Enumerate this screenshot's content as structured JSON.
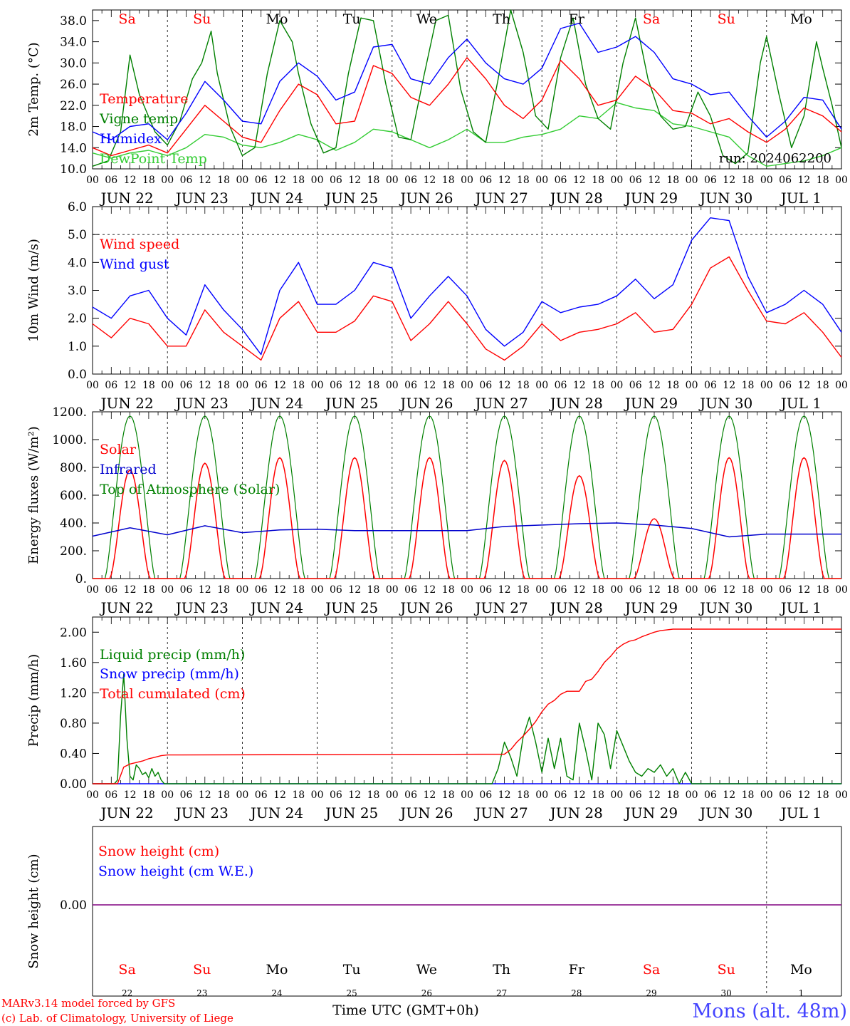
{
  "location": "Mons (alt. 48m)",
  "credit": {
    "line1": "MARv3.14 model forced by GFS",
    "line2": "(c) Lab. of Climatology, University of Liege"
  },
  "run_label": "run: 2024062200",
  "x_axis_title": "Time UTC (GMT+0h)",
  "hour_labels": [
    "00",
    "06",
    "12",
    "18"
  ],
  "days": [
    {
      "dow": "Sa",
      "date": "JUN 22",
      "num": "22",
      "weekend": true
    },
    {
      "dow": "Su",
      "date": "JUN 23",
      "num": "23",
      "weekend": true
    },
    {
      "dow": "Mo",
      "date": "JUN 24",
      "num": "24",
      "weekend": false
    },
    {
      "dow": "Tu",
      "date": "JUN 25",
      "num": "25",
      "weekend": false
    },
    {
      "dow": "We",
      "date": "JUN 26",
      "num": "26",
      "weekend": false
    },
    {
      "dow": "Th",
      "date": "JUN 27",
      "num": "27",
      "weekend": false
    },
    {
      "dow": "Fr",
      "date": "JUN 28",
      "num": "28",
      "weekend": false
    },
    {
      "dow": "Sa",
      "date": "JUN 29",
      "num": "29",
      "weekend": true
    },
    {
      "dow": "Su",
      "date": "JUN 30",
      "num": "30",
      "weekend": true
    },
    {
      "dow": "Mo",
      "date": "JUL  1",
      "num": "1",
      "weekend": false
    }
  ],
  "colors": {
    "red": "#ff0000",
    "green": "#008000",
    "blue": "#0000ff",
    "lightgreen": "#33cc33",
    "navy": "#0000cd",
    "purple": "#800080",
    "weekend_text": "#ff0000",
    "credit_text": "#ff0000",
    "location_text": "#4444ff"
  },
  "chart_data": [
    {
      "type": "line",
      "ylabel": "2m Temp. (°C)",
      "ylim": [
        10,
        40
      ],
      "yticks": [
        10.0,
        14.0,
        18.0,
        22.0,
        26.0,
        30.0,
        34.0,
        38.0
      ],
      "ytick_labels": [
        "10.0",
        "14.0",
        "18.0",
        "22.0",
        "26.0",
        "30.0",
        "34.0",
        "38.0"
      ],
      "xlabel": "",
      "legend": "left",
      "series": [
        {
          "name": "Temperature",
          "color": "#ff0000",
          "x": [
            0,
            6,
            12,
            18,
            24,
            30,
            36,
            42,
            48,
            54,
            60,
            66,
            72,
            78,
            84,
            90,
            96,
            102,
            108,
            114,
            120,
            126,
            132,
            138,
            144,
            150,
            156,
            162,
            168,
            174,
            180,
            186,
            192,
            198,
            204,
            210,
            216,
            222,
            228,
            234,
            240
          ],
          "values": [
            14.0,
            12.5,
            13.5,
            14.5,
            13.0,
            17.5,
            22.0,
            19.0,
            16.0,
            15.0,
            21.0,
            26.0,
            24.0,
            18.5,
            19.0,
            29.5,
            28.0,
            23.5,
            22.0,
            26.0,
            31.0,
            27.0,
            22.0,
            19.5,
            23.0,
            30.5,
            27.0,
            22.0,
            23.0,
            27.5,
            25.0,
            21.0,
            20.5,
            18.5,
            19.5,
            17.0,
            15.0,
            17.5,
            21.5,
            20.0,
            17.0
          ]
        },
        {
          "name": "Vigne temp",
          "color": "#008000",
          "x": [
            0,
            5,
            9,
            12,
            15,
            20,
            24,
            28,
            32,
            35,
            38,
            40,
            44,
            48,
            52,
            56,
            60,
            64,
            66,
            70,
            74,
            78,
            82,
            86,
            90,
            94,
            98,
            102,
            106,
            110,
            114,
            118,
            122,
            126,
            130,
            134,
            138,
            142,
            146,
            150,
            154,
            158,
            162,
            166,
            170,
            174,
            178,
            182,
            186,
            190,
            194,
            198,
            202,
            206,
            210,
            214,
            216,
            220,
            224,
            228,
            232,
            234,
            237,
            240
          ],
          "values": [
            10.5,
            11.5,
            17.0,
            31.5,
            24.0,
            17.0,
            14.5,
            19.0,
            27.0,
            30.0,
            36.0,
            28.0,
            18.0,
            12.5,
            14.0,
            28.0,
            38.0,
            34.0,
            28.0,
            18.5,
            13.0,
            14.0,
            28.0,
            38.5,
            38.0,
            26.0,
            16.0,
            15.5,
            27.0,
            38.0,
            39.0,
            25.0,
            17.0,
            15.0,
            27.0,
            40.0,
            32.0,
            20.0,
            17.5,
            31.0,
            38.5,
            26.0,
            19.5,
            17.5,
            30.0,
            38.5,
            27.0,
            20.0,
            17.5,
            18.0,
            24.5,
            20.0,
            12.5,
            11.0,
            13.0,
            30.0,
            35.0,
            24.0,
            14.0,
            20.0,
            34.0,
            29.0,
            22.0,
            14.0
          ]
        },
        {
          "name": "Humidex",
          "color": "#0000ff",
          "x": [
            0,
            6,
            12,
            18,
            24,
            30,
            36,
            42,
            48,
            54,
            60,
            66,
            72,
            78,
            84,
            90,
            96,
            102,
            108,
            114,
            120,
            126,
            132,
            138,
            144,
            150,
            156,
            162,
            168,
            174,
            180,
            186,
            192,
            198,
            204,
            210,
            216,
            222,
            228,
            234,
            240
          ],
          "values": [
            17.0,
            15.5,
            18.0,
            18.5,
            15.5,
            20.5,
            26.5,
            23.0,
            19.0,
            18.5,
            26.5,
            30.0,
            27.5,
            23.0,
            24.5,
            33.0,
            33.5,
            27.0,
            26.0,
            31.0,
            34.5,
            30.0,
            27.0,
            26.0,
            29.0,
            36.5,
            37.5,
            32.0,
            33.0,
            35.0,
            32.0,
            27.0,
            26.0,
            24.0,
            24.5,
            20.0,
            16.0,
            19.0,
            23.5,
            23.0,
            17.5
          ]
        },
        {
          "name": "DewPoint Temp",
          "color": "#33cc33",
          "x": [
            0,
            6,
            12,
            18,
            24,
            30,
            36,
            42,
            48,
            54,
            60,
            66,
            72,
            78,
            84,
            90,
            96,
            102,
            108,
            114,
            120,
            126,
            132,
            138,
            144,
            150,
            156,
            162,
            168,
            174,
            180,
            186,
            192,
            198,
            204,
            210,
            216,
            222,
            228,
            234,
            240
          ],
          "values": [
            13.0,
            12.0,
            13.0,
            13.5,
            12.5,
            14.0,
            16.5,
            16.0,
            14.5,
            14.0,
            15.0,
            16.5,
            15.5,
            13.5,
            15.0,
            17.5,
            17.0,
            15.5,
            14.0,
            15.5,
            17.5,
            15.0,
            15.0,
            16.0,
            16.5,
            17.5,
            20.0,
            19.5,
            22.5,
            21.5,
            21.0,
            18.5,
            18.0,
            17.0,
            16.0,
            12.5,
            10.5,
            11.0,
            11.5,
            12.5,
            14.0
          ]
        }
      ]
    },
    {
      "type": "line",
      "ylabel": "10m Wind (m/s)",
      "ylim": [
        0,
        6
      ],
      "yticks": [
        0,
        1,
        2,
        3,
        4,
        5,
        6
      ],
      "ytick_labels": [
        "0.0",
        "1.0",
        "2.0",
        "3.0",
        "4.0",
        "5.0",
        "6.0"
      ],
      "reference_line": 5.0,
      "legend": "left",
      "series": [
        {
          "name": "Wind speed",
          "color": "#ff0000",
          "x": [
            0,
            6,
            12,
            18,
            24,
            30,
            36,
            42,
            48,
            54,
            60,
            66,
            72,
            78,
            84,
            90,
            96,
            102,
            108,
            114,
            120,
            126,
            132,
            138,
            144,
            150,
            156,
            162,
            168,
            174,
            180,
            186,
            192,
            198,
            204,
            210,
            216,
            222,
            228,
            234,
            240
          ],
          "values": [
            1.8,
            1.3,
            2.0,
            1.8,
            1.0,
            1.0,
            2.3,
            1.5,
            1.0,
            0.5,
            2.0,
            2.6,
            1.5,
            1.5,
            1.9,
            2.8,
            2.6,
            1.2,
            1.8,
            2.6,
            1.8,
            0.9,
            0.5,
            1.0,
            1.8,
            1.2,
            1.5,
            1.6,
            1.8,
            2.2,
            1.5,
            1.6,
            2.5,
            3.8,
            4.2,
            3.0,
            1.9,
            1.8,
            2.2,
            1.5,
            0.6
          ]
        },
        {
          "name": "Wind gust",
          "color": "#0000ff",
          "x": [
            0,
            6,
            12,
            18,
            24,
            30,
            36,
            42,
            48,
            54,
            60,
            66,
            72,
            78,
            84,
            90,
            96,
            102,
            108,
            114,
            120,
            126,
            132,
            138,
            144,
            150,
            156,
            162,
            168,
            174,
            180,
            186,
            192,
            198,
            204,
            210,
            216,
            222,
            228,
            234,
            240
          ],
          "values": [
            2.4,
            2.0,
            2.8,
            3.0,
            2.0,
            1.4,
            3.2,
            2.3,
            1.6,
            0.7,
            3.0,
            4.0,
            2.5,
            2.5,
            3.0,
            4.0,
            3.8,
            2.0,
            2.8,
            3.5,
            2.8,
            1.6,
            1.0,
            1.5,
            2.6,
            2.2,
            2.4,
            2.5,
            2.8,
            3.4,
            2.7,
            3.2,
            4.8,
            5.6,
            5.5,
            3.5,
            2.2,
            2.5,
            3.0,
            2.5,
            1.5
          ]
        }
      ]
    },
    {
      "type": "line",
      "ylabel": "Energy fluxes (W/m²)",
      "ylim": [
        0,
        1200
      ],
      "yticks": [
        0,
        200,
        400,
        600,
        800,
        1000,
        1200
      ],
      "ytick_labels": [
        "0.",
        "200.",
        "400.",
        "600.",
        "800.",
        "1000.",
        "1200."
      ],
      "legend": "left",
      "series": [
        {
          "name": "Solar",
          "color": "#ff0000",
          "peaks": [
            780,
            830,
            870,
            870,
            870,
            850,
            740,
            430,
            870,
            870
          ]
        },
        {
          "name": "Infrared",
          "color": "#0000cd",
          "x": [
            0,
            12,
            24,
            36,
            48,
            60,
            72,
            84,
            96,
            108,
            120,
            132,
            144,
            156,
            168,
            180,
            192,
            204,
            216,
            228,
            240
          ],
          "values": [
            305,
            365,
            315,
            380,
            330,
            350,
            355,
            345,
            345,
            345,
            345,
            375,
            385,
            395,
            400,
            385,
            360,
            300,
            320,
            320,
            320
          ]
        },
        {
          "name": "Top of Atmosphere (Solar)",
          "color": "#008000",
          "peak": 1170
        }
      ]
    },
    {
      "type": "line",
      "ylabel": "Precip (mm/h)",
      "ylim": [
        0,
        2.2
      ],
      "yticks": [
        0,
        0.4,
        0.8,
        1.2,
        1.6,
        2.0
      ],
      "ytick_labels": [
        "0.00",
        "0.40",
        "0.80",
        "1.20",
        "1.60",
        "2.00"
      ],
      "legend": "left",
      "series": [
        {
          "name": "Liquid precip (mm/h)",
          "color": "#008000",
          "x": [
            0,
            7,
            8,
            9,
            10,
            11,
            12,
            13,
            14,
            15,
            16,
            17,
            18,
            19,
            20,
            21,
            22,
            23,
            24,
            120,
            128,
            130,
            132,
            134,
            136,
            138,
            140,
            142,
            144,
            146,
            148,
            150,
            152,
            154,
            156,
            158,
            160,
            162,
            164,
            166,
            168,
            170,
            172,
            174,
            176,
            178,
            180,
            182,
            184,
            186,
            188,
            190,
            192,
            193,
            240
          ],
          "values": [
            0,
            0,
            0.05,
            0.9,
            1.45,
            0.6,
            0.1,
            0.05,
            0.25,
            0.2,
            0.12,
            0.15,
            0.08,
            0.2,
            0.1,
            0.15,
            0.05,
            0,
            0,
            0,
            0,
            0.2,
            0.55,
            0.35,
            0.1,
            0.62,
            0.88,
            0.55,
            0.15,
            0.6,
            0.2,
            0.6,
            0.1,
            0.05,
            0.8,
            0.45,
            0.05,
            0.8,
            0.65,
            0.2,
            0.7,
            0.5,
            0.3,
            0.15,
            0.1,
            0.2,
            0.15,
            0.25,
            0.1,
            0.2,
            0.0,
            0.15,
            0,
            0,
            0
          ]
        },
        {
          "name": "Snow precip (mm/h)",
          "color": "#0000ff",
          "x": [
            0,
            240
          ],
          "values": [
            0,
            0
          ]
        },
        {
          "name": "Total cumulated (cm)",
          "color": "#ff0000",
          "x": [
            0,
            8,
            10,
            12,
            14,
            16,
            18,
            20,
            22,
            24,
            132,
            134,
            136,
            138,
            140,
            142,
            144,
            146,
            148,
            150,
            152,
            154,
            156,
            158,
            160,
            162,
            164,
            166,
            168,
            170,
            172,
            174,
            176,
            178,
            180,
            182,
            184,
            186,
            188,
            190,
            192,
            194,
            196,
            240
          ],
          "values": [
            0,
            0,
            0.22,
            0.26,
            0.28,
            0.3,
            0.33,
            0.35,
            0.37,
            0.38,
            0.39,
            0.45,
            0.55,
            0.63,
            0.72,
            0.82,
            0.95,
            1.05,
            1.1,
            1.18,
            1.22,
            1.22,
            1.22,
            1.35,
            1.38,
            1.48,
            1.6,
            1.68,
            1.78,
            1.84,
            1.88,
            1.9,
            1.94,
            1.97,
            2.0,
            2.02,
            2.03,
            2.04,
            2.04,
            2.04,
            2.04,
            2.04,
            2.04,
            2.04
          ]
        }
      ]
    },
    {
      "type": "line",
      "ylabel": "Snow height (cm)",
      "yticks": [
        0.0
      ],
      "ytick_labels": [
        "0.00"
      ],
      "legend": "left",
      "series": [
        {
          "name": "Snow height (cm)",
          "color": "#ff0000",
          "x": [
            0,
            240
          ],
          "values": [
            0,
            0
          ]
        },
        {
          "name": "Snow height (cm W.E.)",
          "color": "#0000ff",
          "x": [
            0,
            240
          ],
          "values": [
            0,
            0
          ]
        }
      ]
    }
  ]
}
